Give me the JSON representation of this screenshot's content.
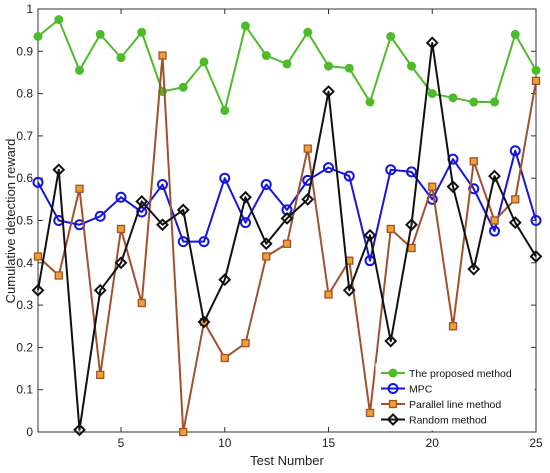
{
  "chart_data": {
    "type": "line",
    "xlabel": "Test Number",
    "ylabel": "Cumulative detection reward",
    "xlim": [
      1,
      25
    ],
    "ylim": [
      0,
      1
    ],
    "x_ticks": [
      5,
      10,
      15,
      20,
      25
    ],
    "y_ticks": [
      0,
      0.1,
      0.2,
      0.3,
      0.4,
      0.5,
      0.6,
      0.7,
      0.8,
      0.9,
      1
    ],
    "y_tick_labels": [
      "0",
      "0.1",
      "0.2",
      "0.3",
      "0.4",
      "0.5",
      "0.6",
      "0.7",
      "0.8",
      "0.9",
      "1"
    ],
    "grid": false,
    "legend_position": "bottom-right",
    "x": [
      1,
      2,
      3,
      4,
      5,
      6,
      7,
      8,
      9,
      10,
      11,
      12,
      13,
      14,
      15,
      16,
      17,
      18,
      19,
      20,
      21,
      22,
      23,
      24,
      25
    ],
    "series": [
      {
        "name": "The proposed method",
        "color": "#4dbb2a",
        "marker": "circle-filled",
        "values": [
          0.935,
          0.975,
          0.855,
          0.94,
          0.885,
          0.945,
          0.805,
          0.815,
          0.875,
          0.76,
          0.96,
          0.89,
          0.87,
          0.945,
          0.865,
          0.86,
          0.78,
          0.935,
          0.865,
          0.8,
          0.79,
          0.78,
          0.78,
          0.94,
          0.855
        ]
      },
      {
        "name": "MPC",
        "color": "#1515e0",
        "marker": "circle-open",
        "values": [
          0.59,
          0.5,
          0.49,
          0.51,
          0.555,
          0.52,
          0.585,
          0.45,
          0.45,
          0.6,
          0.495,
          0.585,
          0.525,
          0.595,
          0.625,
          0.605,
          0.405,
          0.62,
          0.615,
          0.55,
          0.645,
          0.575,
          0.475,
          0.665,
          0.5
        ]
      },
      {
        "name": "Parallel line method",
        "color": "#a0522d",
        "marker": "square",
        "values": [
          0.415,
          0.37,
          0.575,
          0.135,
          0.48,
          0.305,
          0.89,
          0.0,
          0.26,
          0.175,
          0.21,
          0.415,
          0.445,
          0.67,
          0.325,
          0.405,
          0.045,
          0.48,
          0.435,
          0.58,
          0.25,
          0.64,
          0.5,
          0.55,
          0.83
        ]
      },
      {
        "name": "Random method",
        "color": "#111111",
        "marker": "diamond",
        "values": [
          0.335,
          0.62,
          0.005,
          0.335,
          0.4,
          0.545,
          0.49,
          0.525,
          0.26,
          0.36,
          0.555,
          0.445,
          0.505,
          0.55,
          0.805,
          0.335,
          0.465,
          0.215,
          0.49,
          0.92,
          0.58,
          0.385,
          0.605,
          0.495,
          0.415
        ]
      }
    ]
  }
}
